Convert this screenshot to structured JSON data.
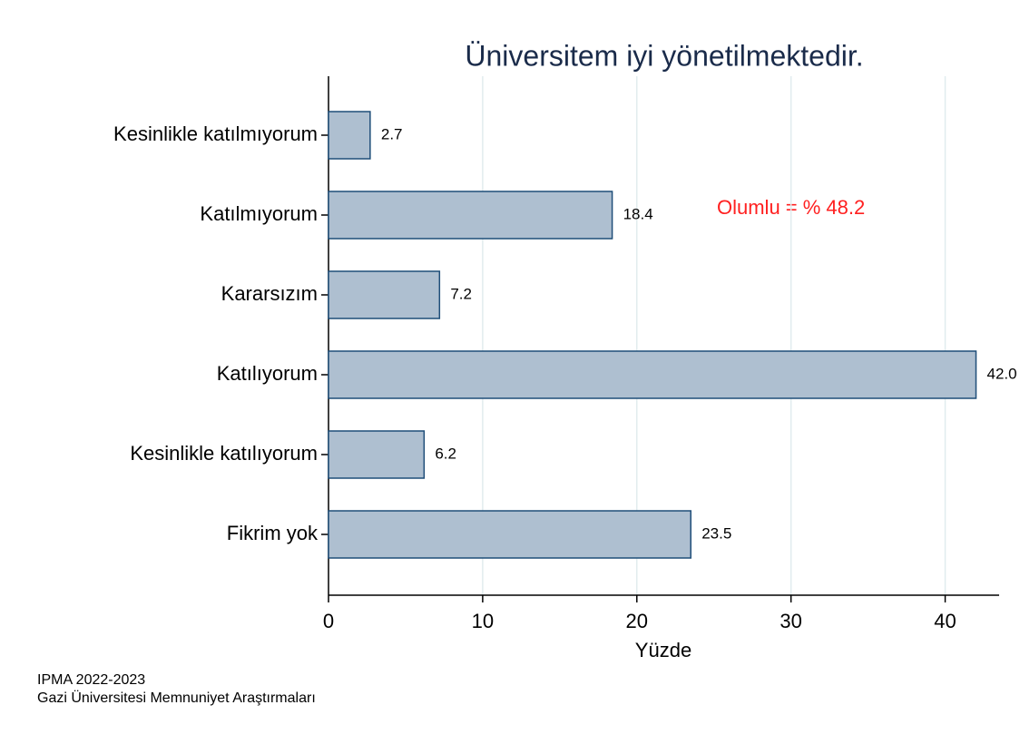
{
  "chart_data": {
    "type": "barh",
    "title": "Üniversitem iyi yönetilmektedir.",
    "categories": [
      "Kesinlikle katılmıyorum",
      "Katılmıyorum",
      "Kararsızım",
      "Katılıyorum",
      "Kesinlikle katılıyorum",
      "Fikrim yok"
    ],
    "values": [
      2.7,
      18.4,
      7.2,
      42,
      6.2,
      23.5
    ],
    "value_labels": [
      "2.7",
      "18.4",
      "7.2",
      "42.0",
      "6.2",
      "23.5"
    ],
    "color": "#aebfd0",
    "xlabel": "Yüzde",
    "xlim": [
      0,
      43.5
    ],
    "xticks": [
      0,
      10,
      20,
      30,
      40
    ],
    "grid": true,
    "annotation": "Olumlu = % 48.2",
    "notes": [
      "IPMA 2022-2023",
      "Gazi Üniversitesi Memnuniyet Araştırmaları"
    ]
  }
}
